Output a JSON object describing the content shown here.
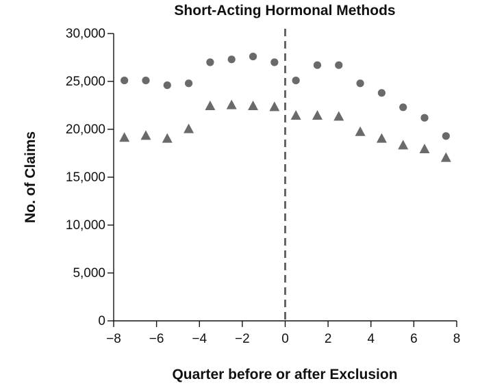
{
  "chart_data": {
    "type": "scatter",
    "title": "Short-Acting Hormonal Methods",
    "xlabel": "Quarter before or after Exclusion",
    "ylabel": "No. of Claims",
    "xlim": [
      -8,
      8
    ],
    "ylim": [
      0,
      30000
    ],
    "x_ticks": [
      -8,
      -6,
      -4,
      -2,
      0,
      2,
      4,
      6,
      8
    ],
    "x_tick_labels": [
      "−8",
      "−6",
      "−4",
      "−2",
      "0",
      "2",
      "4",
      "6",
      "8"
    ],
    "y_ticks": [
      0,
      5000,
      10000,
      15000,
      20000,
      25000,
      30000
    ],
    "y_tick_labels": [
      "0",
      "5,000",
      "10,000",
      "15,000",
      "20,000",
      "25,000",
      "30,000"
    ],
    "reference_line": {
      "x": 0,
      "style": "dashed",
      "color": "#666666"
    },
    "marker_color": "#6a6a6a",
    "grid": false,
    "series": [
      {
        "marker": "circle",
        "x": [
          -7.5,
          -6.5,
          -5.5,
          -4.5,
          -3.5,
          -2.5,
          -1.5,
          -0.5,
          0.5,
          1.5,
          2.5,
          3.5,
          4.5,
          5.5,
          6.5,
          7.5
        ],
        "y": [
          25100,
          25100,
          24600,
          24800,
          27000,
          27300,
          27600,
          27000,
          25100,
          26700,
          26700,
          24800,
          23800,
          22300,
          21200,
          19300
        ]
      },
      {
        "marker": "triangle",
        "x": [
          -7.5,
          -6.5,
          -5.5,
          -4.5,
          -3.5,
          -2.5,
          -1.5,
          -0.5,
          0.5,
          1.5,
          2.5,
          3.5,
          4.5,
          5.5,
          6.5,
          7.5
        ],
        "y": [
          19100,
          19300,
          19000,
          20000,
          22400,
          22500,
          22400,
          22300,
          21400,
          21400,
          21300,
          19700,
          19000,
          18300,
          17900,
          17000
        ]
      }
    ]
  }
}
